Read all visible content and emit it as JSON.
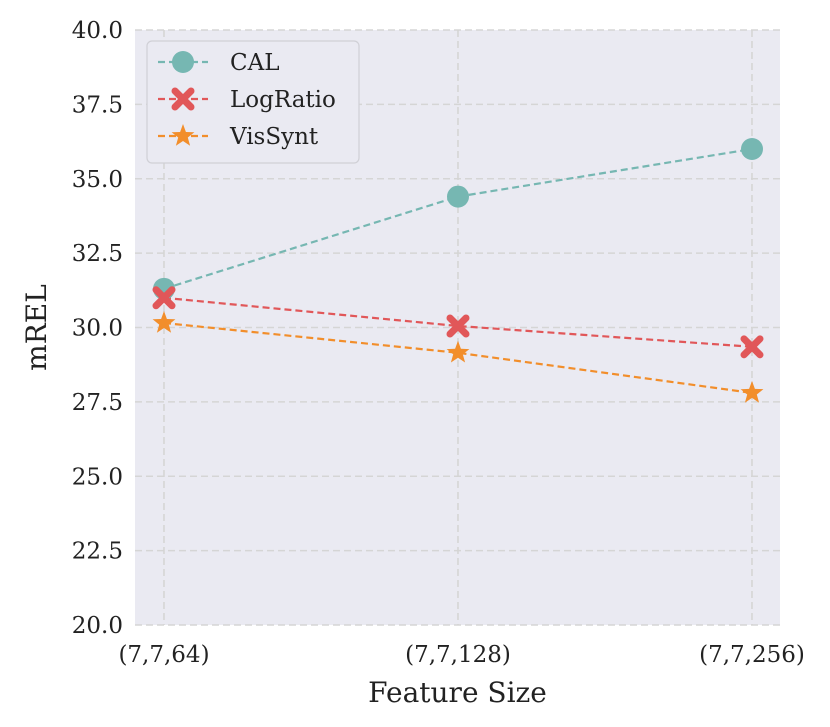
{
  "chart_data": {
    "type": "line",
    "title": "",
    "xlabel": "Feature Size",
    "ylabel": "mREL",
    "categories": [
      "(7,7,64)",
      "(7,7,128)",
      "(7,7,256)"
    ],
    "ylim": [
      20.0,
      40.0
    ],
    "yticks": [
      "20.0",
      "22.5",
      "25.0",
      "27.5",
      "30.0",
      "32.5",
      "35.0",
      "37.5",
      "40.0"
    ],
    "grid": true,
    "legend_position": "top-left",
    "series": [
      {
        "name": "CAL",
        "marker": "circle",
        "color": "#76b7b2",
        "values": [
          31.3,
          34.4,
          36.0
        ]
      },
      {
        "name": "LogRatio",
        "marker": "x",
        "color": "#e15759",
        "values": [
          31.0,
          30.05,
          29.35
        ]
      },
      {
        "name": "VisSynt",
        "marker": "star",
        "color": "#f28e2b",
        "values": [
          30.15,
          29.15,
          27.8
        ]
      }
    ]
  }
}
